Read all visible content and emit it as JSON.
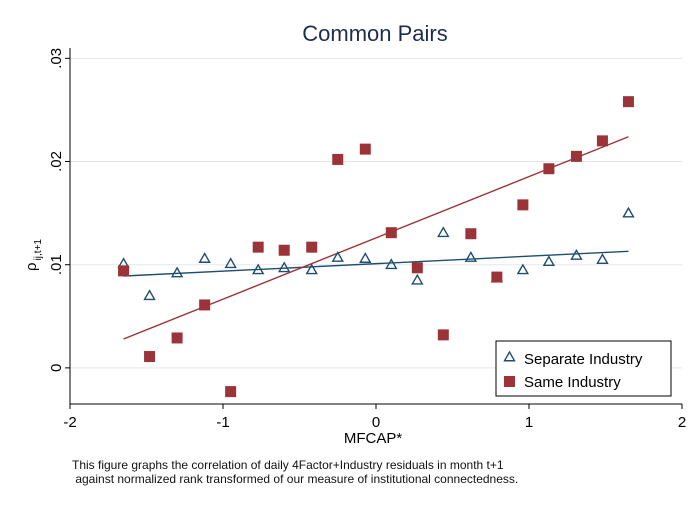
{
  "chart_data": {
    "type": "scatter",
    "title": "Common Pairs",
    "xlabel": "MFCAP*",
    "ylabel": "ρ",
    "ylabel_subscript": "ij,t+1",
    "xlim": [
      -2,
      2
    ],
    "ylim": [
      -0.0035,
      0.031
    ],
    "x_ticks": [
      -2,
      -1,
      0,
      1,
      2
    ],
    "x_tick_labels": [
      "-2",
      "-1",
      "0",
      "1",
      "2"
    ],
    "y_ticks": [
      0,
      0.01,
      0.02,
      0.03
    ],
    "y_tick_labels": [
      "0",
      ".01",
      ".02",
      ".03"
    ],
    "grid": "horizontal",
    "legend_position": "bottom-right",
    "series": [
      {
        "name": "Separate Industry",
        "marker": "triangle",
        "color": "#1f4e6e",
        "points": [
          [
            -1.65,
            0.0101
          ],
          [
            -1.48,
            0.007
          ],
          [
            -1.3,
            0.0092
          ],
          [
            -1.12,
            0.0106
          ],
          [
            -0.95,
            0.0101
          ],
          [
            -0.77,
            0.0095
          ],
          [
            -0.6,
            0.0097
          ],
          [
            -0.42,
            0.0095
          ],
          [
            -0.25,
            0.0107
          ],
          [
            -0.07,
            0.0106
          ],
          [
            0.1,
            0.01
          ],
          [
            0.27,
            0.0085
          ],
          [
            0.44,
            0.0131
          ],
          [
            0.62,
            0.0107
          ],
          [
            0.79,
            0.0087
          ],
          [
            0.96,
            0.0095
          ],
          [
            1.13,
            0.0103
          ],
          [
            1.31,
            0.0109
          ],
          [
            1.48,
            0.0105
          ],
          [
            1.65,
            0.015
          ]
        ],
        "fit_line": [
          [
            -1.65,
            0.0089
          ],
          [
            1.65,
            0.0113
          ]
        ]
      },
      {
        "name": "Same Industry",
        "marker": "square",
        "color": "#9b3438",
        "points": [
          [
            -1.65,
            0.0094
          ],
          [
            -1.48,
            0.0011
          ],
          [
            -1.3,
            0.0029
          ],
          [
            -1.12,
            0.0061
          ],
          [
            -0.95,
            -0.0023
          ],
          [
            -0.77,
            0.0117
          ],
          [
            -0.6,
            0.0114
          ],
          [
            -0.42,
            0.0117
          ],
          [
            -0.25,
            0.0202
          ],
          [
            -0.07,
            0.0212
          ],
          [
            0.1,
            0.0131
          ],
          [
            0.27,
            0.0097
          ],
          [
            0.44,
            0.0032
          ],
          [
            0.62,
            0.013
          ],
          [
            0.79,
            0.0088
          ],
          [
            0.96,
            0.0158
          ],
          [
            1.13,
            0.0193
          ],
          [
            1.31,
            0.0205
          ],
          [
            1.48,
            0.022
          ],
          [
            1.65,
            0.0258
          ]
        ],
        "fit_line": [
          [
            -1.65,
            0.0028
          ],
          [
            1.65,
            0.0224
          ]
        ]
      }
    ]
  },
  "note": {
    "line1": "This figure graphs the correlation of daily 4Factor+Industry residuals in month t+1",
    "line2": " against normalized rank transformed of our measure of institutional connectedness."
  }
}
